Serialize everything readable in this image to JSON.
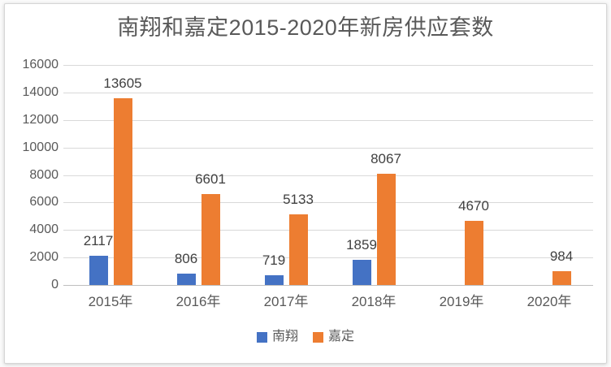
{
  "chart_data": {
    "type": "bar",
    "title": "南翔和嘉定2015-2020年新房供应套数",
    "categories": [
      "2015年",
      "2016年",
      "2017年",
      "2018年",
      "2019年",
      "2020年"
    ],
    "series": [
      {
        "key": "nanxiang",
        "name": "南翔",
        "color": "#4472C4",
        "values": [
          2117,
          806,
          719,
          1859,
          null,
          null
        ]
      },
      {
        "key": "jiading",
        "name": "嘉定",
        "color": "#ED7D31",
        "values": [
          13605,
          6601,
          5133,
          8067,
          4670,
          984
        ]
      }
    ],
    "xlabel": "",
    "ylabel": "",
    "ylim": [
      0,
      16000
    ],
    "ytick_interval": 2000,
    "yticks": [
      0,
      2000,
      4000,
      6000,
      8000,
      10000,
      12000,
      14000,
      16000
    ],
    "grid": true,
    "data_labels": true,
    "legend_position": "bottom"
  },
  "colors": {
    "title_text": "#595959",
    "axis_text": "#595959",
    "data_label_text": "#404040",
    "gridline": "#d9d9d9",
    "axis_line": "#bfbfbf",
    "card_background": "#ffffff",
    "card_border": "#d6d6d6"
  }
}
